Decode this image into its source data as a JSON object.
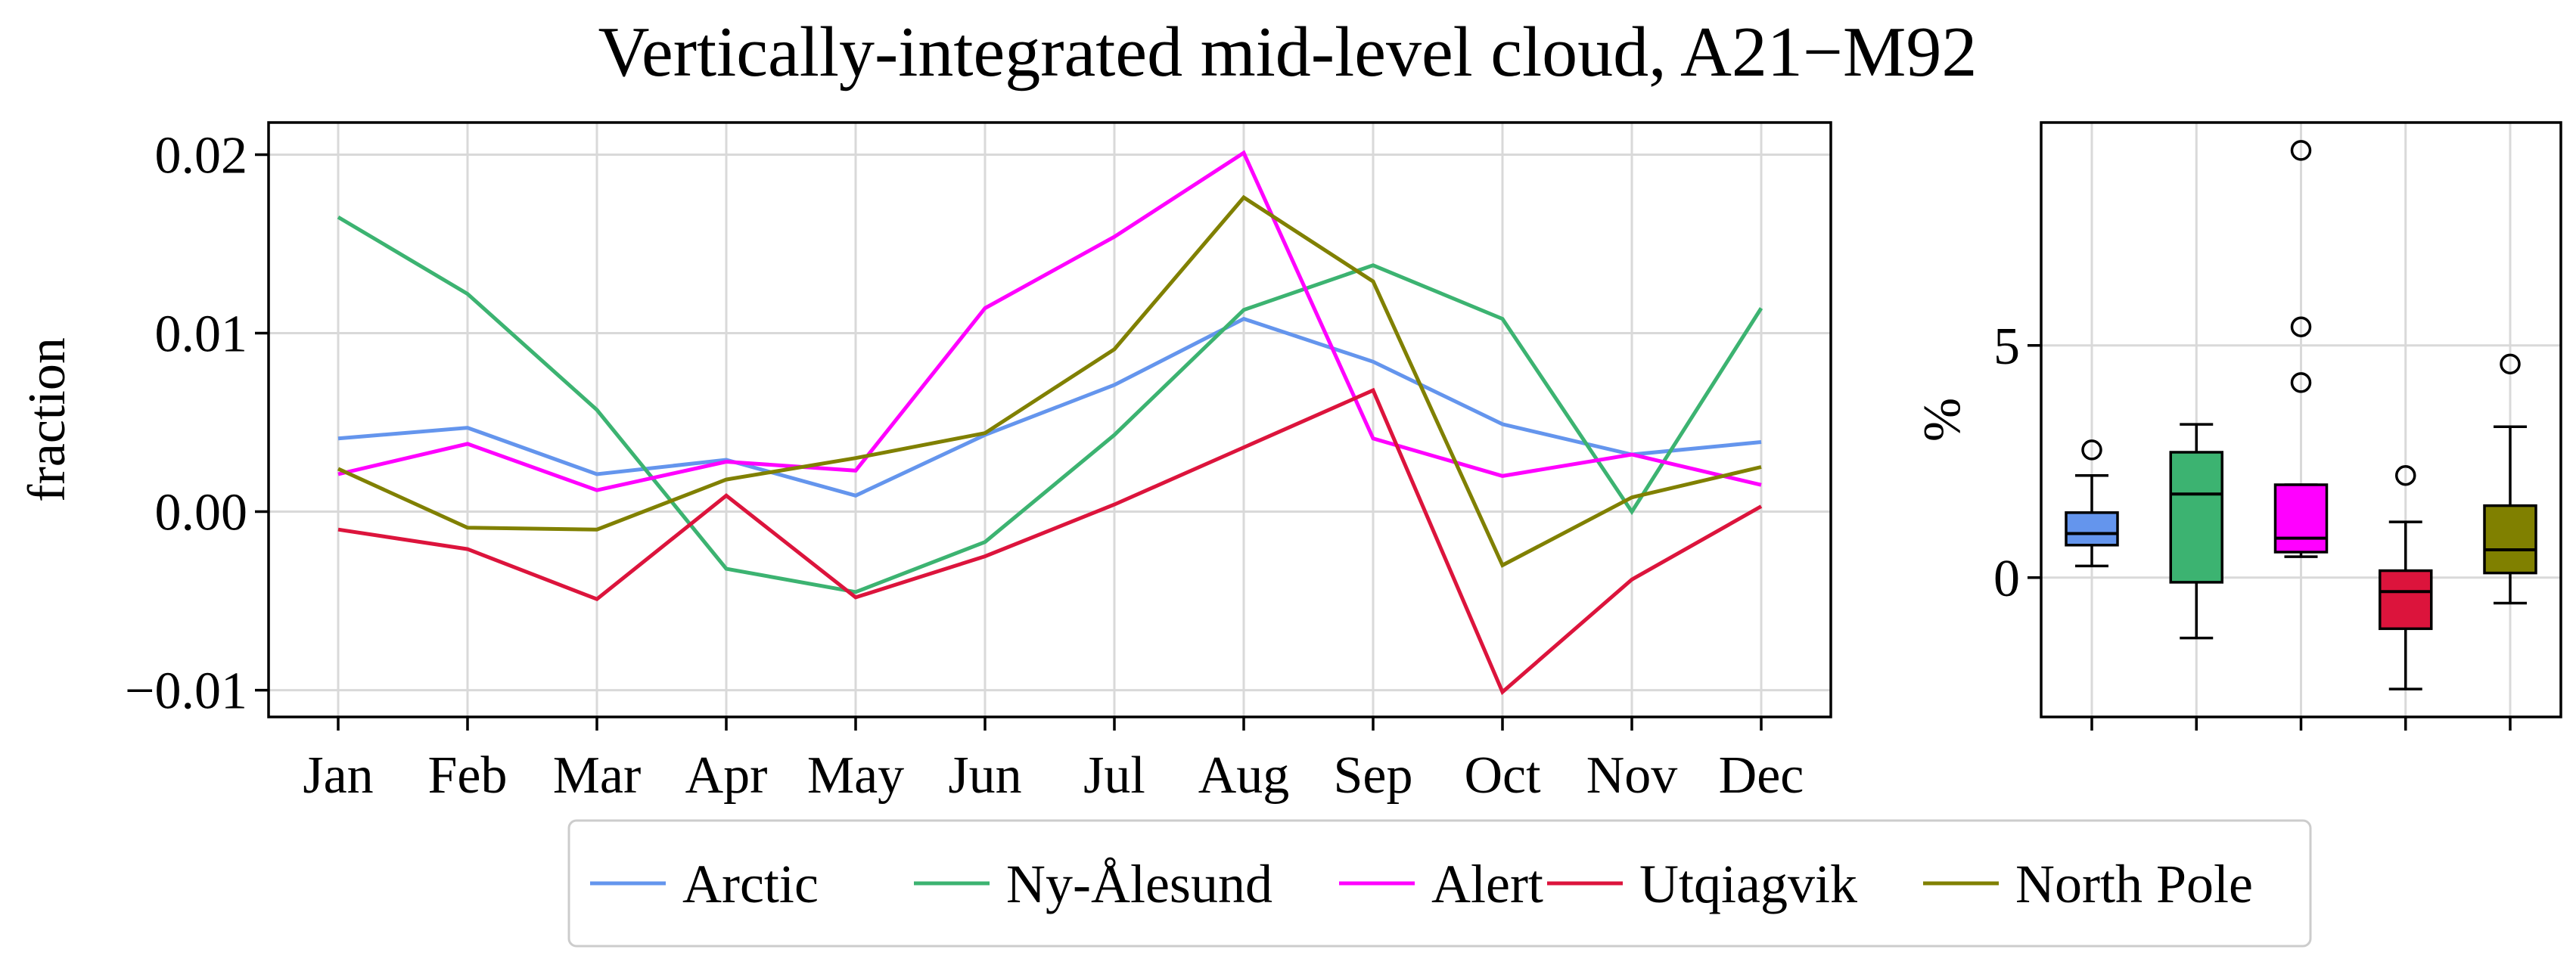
{
  "title": "Vertically-integrated mid-level cloud, A21−M92",
  "chart_data": [
    {
      "type": "line",
      "ylabel": "fraction",
      "xlabel": "",
      "categories": [
        "Jan",
        "Feb",
        "Mar",
        "Apr",
        "May",
        "Jun",
        "Jul",
        "Aug",
        "Sep",
        "Oct",
        "Nov",
        "Dec"
      ],
      "ylim": [
        -0.0115,
        0.0218
      ],
      "yticks": [
        -0.01,
        0.0,
        0.01,
        0.02
      ],
      "ytick_labels": [
        "−0.01",
        "0.00",
        "0.01",
        "0.02"
      ],
      "grid": true,
      "series": [
        {
          "name": "Arctic",
          "color": "#6495ed",
          "values": [
            0.0041,
            0.0047,
            0.0021,
            0.0029,
            0.0009,
            0.0043,
            0.0071,
            0.0108,
            0.0084,
            0.0049,
            0.0032,
            0.0039
          ]
        },
        {
          "name": "Ny-Ålesund",
          "color": "#3cb371",
          "values": [
            0.0165,
            0.0122,
            0.0057,
            -0.0032,
            -0.0045,
            -0.0017,
            0.0043,
            0.0113,
            0.0138,
            0.0108,
            0.0,
            0.0114
          ]
        },
        {
          "name": "Alert",
          "color": "#ff00ff",
          "values": [
            0.0021,
            0.0038,
            0.0012,
            0.0028,
            0.0023,
            0.0114,
            0.0154,
            0.0201,
            0.0041,
            0.002,
            0.0032,
            0.0015
          ]
        },
        {
          "name": "Utqiagvik",
          "color": "#dc143c",
          "values": [
            -0.001,
            -0.0021,
            -0.0049,
            0.0009,
            -0.0048,
            -0.0025,
            0.0004,
            0.0036,
            0.0068,
            -0.0101,
            -0.0038,
            0.0003
          ]
        },
        {
          "name": "North Pole",
          "color": "#808000",
          "values": [
            0.0024,
            -0.0009,
            -0.001,
            0.0018,
            0.003,
            0.0044,
            0.0091,
            0.0176,
            0.0129,
            -0.003,
            0.0008,
            0.0025
          ]
        }
      ]
    },
    {
      "type": "box",
      "ylabel": "%",
      "ylim": [
        -3.0,
        9.8
      ],
      "yticks": [
        0,
        5
      ],
      "ytick_labels": [
        "0",
        "5"
      ],
      "grid": true,
      "boxes": [
        {
          "name": "Arctic",
          "color": "#6495ed",
          "whisker_low": 0.25,
          "q1": 0.7,
          "median": 0.95,
          "q3": 1.4,
          "whisker_high": 2.2,
          "outliers": [
            2.75
          ]
        },
        {
          "name": "Ny-Ålesund",
          "color": "#3cb371",
          "whisker_low": -1.3,
          "q1": -0.1,
          "median": 1.8,
          "q3": 2.7,
          "whisker_high": 3.3,
          "outliers": []
        },
        {
          "name": "Alert",
          "color": "#ff00ff",
          "whisker_low": 0.45,
          "q1": 0.55,
          "median": 0.85,
          "q3": 2.0,
          "whisker_high": 2.0,
          "outliers": [
            4.2,
            5.4,
            9.2
          ]
        },
        {
          "name": "Utqiagvik",
          "color": "#dc143c",
          "whisker_low": -2.4,
          "q1": -1.1,
          "median": -0.3,
          "q3": 0.15,
          "whisker_high": 1.2,
          "outliers": [
            2.2
          ]
        },
        {
          "name": "North Pole",
          "color": "#808000",
          "whisker_low": -0.55,
          "q1": 0.1,
          "median": 0.6,
          "q3": 1.55,
          "whisker_high": 3.25,
          "outliers": [
            4.6
          ]
        }
      ]
    }
  ],
  "legend": {
    "position": "bottom-center",
    "entries": [
      {
        "label": "Arctic",
        "color": "#6495ed"
      },
      {
        "label": "Ny-Ålesund",
        "color": "#3cb371"
      },
      {
        "label": "Alert",
        "color": "#ff00ff"
      },
      {
        "label": "Utqiagvik",
        "color": "#dc143c"
      },
      {
        "label": "North Pole",
        "color": "#808000"
      }
    ]
  }
}
